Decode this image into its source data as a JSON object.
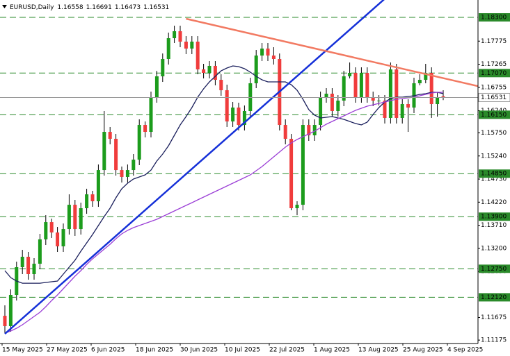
{
  "chart_data": {
    "type": "candlestick",
    "title": "EURUSD,Daily",
    "x_labels": [
      "15 May 2025",
      "27 May 2025",
      "6 Jun 2025",
      "18 Jun 2025",
      "30 Jun 2025",
      "10 Jul 2025",
      "22 Jul 2025",
      "1 Aug 2025",
      "13 Aug 2025",
      "25 Aug 2025",
      "4 Sep 2025"
    ],
    "open": [
      1.11712,
      1.11483,
      1.12172,
      1.12785,
      1.13015,
      1.12632,
      1.12861,
      1.13399,
      1.1378,
      1.13551,
      1.13245,
      1.13627,
      1.14163,
      1.13627,
      1.14087,
      1.14393,
      1.1424,
      1.14929,
      1.15772,
      1.15619,
      1.14929,
      1.14777,
      1.14929,
      1.15159,
      1.15925,
      1.15772,
      1.16538,
      1.16998,
      1.17381,
      1.1784,
      1.17994,
      1.17764,
      1.17611,
      1.17764,
      1.17151,
      1.17074,
      1.17228,
      1.16921,
      1.16691,
      1.16002,
      1.16309,
      1.15925,
      1.16232,
      1.16845,
      1.17457,
      1.17611,
      1.17457,
      1.17381,
      1.15925,
      1.15619,
      1.14087,
      1.14163,
      1.15925,
      1.15696,
      1.15925,
      1.16538,
      1.16615,
      1.16232,
      1.16462,
      1.16998,
      1.17074,
      1.16538,
      1.17074,
      1.16538,
      1.16462,
      1.16462,
      1.16079,
      1.17151,
      1.16079,
      1.16385,
      1.16309,
      1.16845,
      1.16921,
      1.17074,
      1.16385,
      1.16558
    ],
    "high": [
      1.11942,
      1.12295,
      1.12907,
      1.13168,
      1.13122,
      1.12984,
      1.1352,
      1.13933,
      1.13857,
      1.13673,
      1.1375,
      1.14393,
      1.14271,
      1.14209,
      1.14516,
      1.1447,
      1.15052,
      1.16232,
      1.1588,
      1.15726,
      1.15006,
      1.15052,
      1.15282,
      1.16048,
      1.16002,
      1.16661,
      1.1712,
      1.17503,
      1.17963,
      1.18116,
      1.18116,
      1.17886,
      1.17886,
      1.17886,
      1.17274,
      1.17335,
      1.17335,
      1.17044,
      1.16814,
      1.16431,
      1.16416,
      1.16355,
      1.16967,
      1.1758,
      1.17733,
      1.17733,
      1.17641,
      1.17503,
      1.16048,
      1.15726,
      1.1424,
      1.16048,
      1.16048,
      1.16048,
      1.16661,
      1.16737,
      1.16737,
      1.16584,
      1.1712,
      1.17304,
      1.17197,
      1.17197,
      1.17197,
      1.16661,
      1.16584,
      1.16584,
      1.17304,
      1.17274,
      1.16492,
      1.16492,
      1.16967,
      1.17044,
      1.17274,
      1.17197,
      1.16645,
      1.16691
    ],
    "low": [
      1.1133,
      1.1136,
      1.12049,
      1.12632,
      1.12509,
      1.12509,
      1.12739,
      1.13275,
      1.13429,
      1.13122,
      1.13122,
      1.13505,
      1.13475,
      1.13505,
      1.13964,
      1.14117,
      1.14117,
      1.14807,
      1.15497,
      1.14807,
      1.14654,
      1.14654,
      1.14807,
      1.15037,
      1.1565,
      1.1565,
      1.16416,
      1.16875,
      1.17258,
      1.17733,
      1.17641,
      1.17488,
      1.17488,
      1.17044,
      1.16952,
      1.16952,
      1.16799,
      1.16569,
      1.1588,
      1.1588,
      1.15803,
      1.15803,
      1.16109,
      1.16737,
      1.17335,
      1.17335,
      1.17258,
      1.15803,
      1.15497,
      1.14041,
      1.13933,
      1.14041,
      1.15573,
      1.15573,
      1.15803,
      1.16416,
      1.16109,
      1.16109,
      1.16339,
      1.16952,
      1.16416,
      1.16416,
      1.16416,
      1.16339,
      1.16355,
      1.15956,
      1.15956,
      1.15956,
      1.15956,
      1.15772,
      1.16186,
      1.16799,
      1.16845,
      1.16079,
      1.16109,
      1.16473
    ],
    "close": [
      1.11483,
      1.12172,
      1.12785,
      1.13015,
      1.12632,
      1.12861,
      1.13399,
      1.1378,
      1.13551,
      1.13245,
      1.13627,
      1.14163,
      1.13627,
      1.14087,
      1.14393,
      1.1424,
      1.14929,
      1.15772,
      1.15619,
      1.14929,
      1.14777,
      1.14929,
      1.15159,
      1.15925,
      1.15772,
      1.16538,
      1.16998,
      1.17381,
      1.1784,
      1.17994,
      1.17764,
      1.17611,
      1.17764,
      1.17151,
      1.17074,
      1.17228,
      1.16921,
      1.16691,
      1.16002,
      1.16309,
      1.15925,
      1.16232,
      1.16845,
      1.17457,
      1.17611,
      1.17457,
      1.17381,
      1.15925,
      1.15619,
      1.14087,
      1.14163,
      1.15925,
      1.15696,
      1.15925,
      1.16538,
      1.16615,
      1.16232,
      1.16462,
      1.16998,
      1.17074,
      1.16538,
      1.17074,
      1.16538,
      1.16462,
      1.16462,
      1.16079,
      1.17151,
      1.16079,
      1.16385,
      1.16309,
      1.16845,
      1.16921,
      1.17074,
      1.16385,
      1.16538,
      1.16531
    ],
    "up_color": "#1c9c1c",
    "down_color": "#f03c3c",
    "series": [
      {
        "color": "#1a1f5c",
        "values": [
          1.12708,
          1.12555,
          1.12478,
          1.12432,
          1.12432,
          1.12432,
          1.12432,
          1.12448,
          1.12463,
          1.12478,
          1.12632,
          1.12785,
          1.12938,
          1.13137,
          1.13321,
          1.13505,
          1.13704,
          1.13903,
          1.14087,
          1.14317,
          1.14516,
          1.14639,
          1.14731,
          1.14777,
          1.14822,
          1.14929,
          1.15129,
          1.15282,
          1.15466,
          1.15696,
          1.15925,
          1.16109,
          1.16309,
          1.16538,
          1.16722,
          1.16875,
          1.16998,
          1.1712,
          1.17182,
          1.17228,
          1.17212,
          1.17166,
          1.1709,
          1.16998,
          1.16921,
          1.16875,
          1.16875,
          1.16875,
          1.16875,
          1.16814,
          1.16691,
          1.16492,
          1.16263,
          1.1614,
          1.16079,
          1.16094,
          1.16109,
          1.16079,
          1.16048,
          1.16002,
          1.15956,
          1.15925,
          1.15987,
          1.16155,
          1.16309,
          1.16431,
          1.16508,
          1.16538,
          1.16538,
          1.16554,
          1.16569,
          1.16599,
          1.16615,
          1.16645,
          1.16645,
          1.16615
        ]
      },
      {
        "color": "#9b3fd6",
        "values": [
          1.1133,
          1.11375,
          1.11437,
          1.11513,
          1.11605,
          1.11697,
          1.11789,
          1.11912,
          1.12049,
          1.12172,
          1.1231,
          1.12448,
          1.12586,
          1.12708,
          1.12846,
          1.12969,
          1.13076,
          1.13183,
          1.1329,
          1.13413,
          1.1352,
          1.13597,
          1.13658,
          1.13704,
          1.1375,
          1.13796,
          1.13842,
          1.13903,
          1.13964,
          1.14026,
          1.14087,
          1.14148,
          1.14209,
          1.14271,
          1.14332,
          1.14393,
          1.14455,
          1.14516,
          1.14577,
          1.14639,
          1.147,
          1.14761,
          1.14822,
          1.14914,
          1.15006,
          1.15113,
          1.15221,
          1.15328,
          1.15435,
          1.15527,
          1.15604,
          1.15665,
          1.15726,
          1.15788,
          1.15864,
          1.15941,
          1.16002,
          1.16063,
          1.16125,
          1.16186,
          1.16247,
          1.16293,
          1.16339,
          1.1637,
          1.164,
          1.16431,
          1.16462,
          1.16492,
          1.16508,
          1.16523,
          1.16538,
          1.16569,
          1.16599,
          1.1663,
          1.16645,
          1.16645
        ]
      }
    ],
    "trendlines": [
      {
        "color": "#1530d8",
        "points": [
          {
            "x": 0,
            "y": 1.11314
          },
          {
            "x": 60,
            "y": 1.18141
          }
        ]
      },
      {
        "color": "#f27a62",
        "points": [
          {
            "x": 31,
            "y": 1.18269
          },
          {
            "x": 75,
            "y": 1.16958
          }
        ]
      }
    ],
    "levels": [
      {
        "value": 1.183,
        "label": "1.18300"
      },
      {
        "value": 1.1707,
        "label": "1.17070"
      },
      {
        "value": 1.1615,
        "label": "1.16150"
      },
      {
        "value": 1.1485,
        "label": "1.14850"
      },
      {
        "value": 1.139,
        "label": "1.13900"
      },
      {
        "value": 1.1275,
        "label": "1.12750"
      },
      {
        "value": 1.1212,
        "label": "1.12120"
      }
    ],
    "level_color": "#2a8a2a",
    "ylim": [
      1.111,
      1.18683
    ],
    "yticks": [
      {
        "value": 1.17775,
        "label": "1.17775"
      },
      {
        "value": 1.17265,
        "label": "1.17265"
      },
      {
        "value": 1.16755,
        "label": "1.16755"
      },
      {
        "value": 1.1624,
        "label": "1.16240"
      },
      {
        "value": 1.1575,
        "label": "1.15750"
      },
      {
        "value": 1.1524,
        "label": "1.15240"
      },
      {
        "value": 1.1473,
        "label": "1.14730"
      },
      {
        "value": 1.1422,
        "label": "1.14220"
      },
      {
        "value": 1.1371,
        "label": "1.13710"
      },
      {
        "value": 1.132,
        "label": "1.13200"
      },
      {
        "value": 1.1269,
        "label": "1.12690"
      },
      {
        "value": 1.11675,
        "label": "1.11675"
      },
      {
        "value": 1.11175,
        "label": "1.11175"
      }
    ]
  }
}
